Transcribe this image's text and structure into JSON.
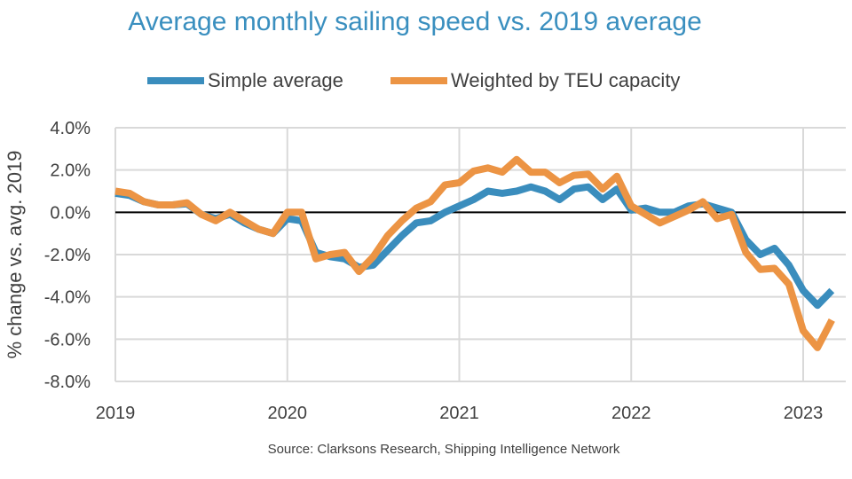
{
  "chart_data": {
    "type": "line",
    "title": "Average monthly sailing speed vs. 2019 average",
    "xlabel": "",
    "ylabel": "% change vs. avg. 2019",
    "ylim": [
      -8,
      4
    ],
    "yticks": [
      "4.0%",
      "2.0%",
      "0.0%",
      "-2.0%",
      "-4.0%",
      "-6.0%",
      "-8.0%"
    ],
    "ytick_values": [
      4,
      2,
      0,
      -2,
      -4,
      -6,
      -8
    ],
    "xticks": [
      "2019",
      "2020",
      "2021",
      "2022",
      "2023"
    ],
    "x_unit": "monthly, Jan 2019 - Mar 2023",
    "grid": true,
    "legend_position": "top",
    "source": "Source: Clarksons Research, Shipping Intelligence Network",
    "series": [
      {
        "name": "Simple average",
        "color": "#3a8dbd",
        "values": [
          0.9,
          0.8,
          0.5,
          0.35,
          0.35,
          0.4,
          -0.1,
          -0.3,
          -0.1,
          -0.5,
          -0.8,
          -1.0,
          -0.3,
          -0.4,
          -1.9,
          -2.1,
          -2.2,
          -2.6,
          -2.5,
          -1.8,
          -1.1,
          -0.5,
          -0.4,
          0.0,
          0.3,
          0.6,
          1.0,
          0.9,
          1.0,
          1.2,
          1.0,
          0.6,
          1.1,
          1.2,
          0.6,
          1.1,
          0.1,
          0.2,
          0.0,
          0.0,
          0.3,
          0.4,
          0.2,
          0.0,
          -1.3,
          -2.0,
          -1.7,
          -2.5,
          -3.7,
          -4.4,
          -3.7
        ]
      },
      {
        "name": "Weighted by TEU capacity",
        "color": "#ec9444",
        "values": [
          1.0,
          0.9,
          0.5,
          0.35,
          0.35,
          0.45,
          -0.1,
          -0.4,
          0.0,
          -0.4,
          -0.8,
          -1.0,
          0.0,
          0.0,
          -2.2,
          -2.0,
          -1.9,
          -2.8,
          -2.1,
          -1.1,
          -0.4,
          0.2,
          0.5,
          1.3,
          1.4,
          1.95,
          2.1,
          1.9,
          2.5,
          1.9,
          1.9,
          1.4,
          1.75,
          1.8,
          1.1,
          1.7,
          0.3,
          -0.1,
          -0.5,
          -0.2,
          0.1,
          0.5,
          -0.3,
          -0.1,
          -1.9,
          -2.7,
          -2.65,
          -3.4,
          -5.6,
          -6.4,
          -5.1
        ]
      }
    ]
  }
}
